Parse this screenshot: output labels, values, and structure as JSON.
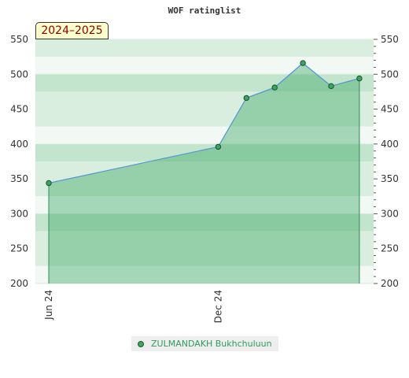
{
  "chart_data": {
    "type": "area",
    "title": "WOF ratinglist",
    "season": "2024–2025",
    "x_ticks": [
      "Jun 24",
      "Dec 24"
    ],
    "ylim": [
      200,
      550
    ],
    "y_ticks": [
      200,
      250,
      300,
      350,
      400,
      450,
      500,
      550
    ],
    "series": [
      {
        "name": "ZULMANDAKH Bukhchuluun",
        "points": [
          {
            "x": "2024-06",
            "y": 344
          },
          {
            "x": "2024-12",
            "y": 396
          },
          {
            "x": "2025-01",
            "y": 466
          },
          {
            "x": "2025-02",
            "y": 481
          },
          {
            "x": "2025-03",
            "y": 516
          },
          {
            "x": "2025-04",
            "y": 483
          },
          {
            "x": "2025-05",
            "y": 494
          }
        ]
      }
    ],
    "grid": true,
    "legend": "bottom"
  },
  "colors": {
    "line": "#4f94d3",
    "fill": "#3aa661",
    "marker": "#3aa661",
    "legend_text": "#2e9b5b",
    "band_light": "#f2f9f4",
    "band_mid": "#daeee0",
    "band_dark": "#c3e4cd"
  }
}
